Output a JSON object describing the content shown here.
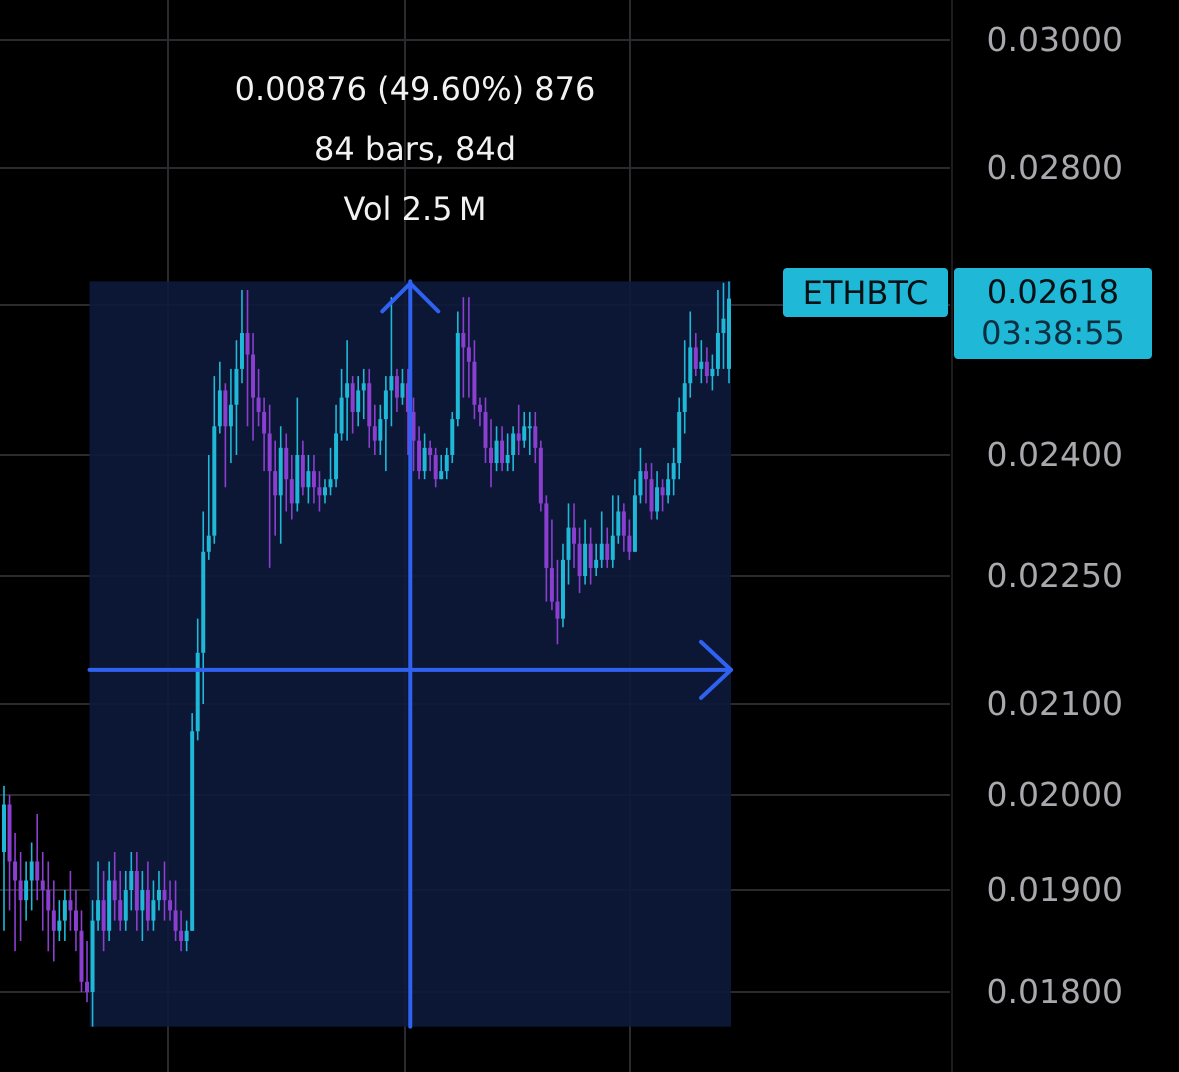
{
  "colors": {
    "background": "#000000",
    "grid": "#2b2b2f",
    "up": "#1fb8d7",
    "down": "#8a3fd1",
    "measure_fill": "#0c1a3a",
    "measure_arrow": "#2f62f0",
    "badge": "#1fb8d7",
    "axis_text": "#a8a8ad"
  },
  "measure_info": {
    "change": "0.00876 (49.60%) 876",
    "bars": "84 bars, 84d",
    "volume": "Vol 2.5 M"
  },
  "symbol_badge": "ETHBTC",
  "last_price": {
    "value": "0.02618",
    "countdown": "03:38:55"
  },
  "chart_data": {
    "type": "candlestick",
    "symbol": "ETHBTC",
    "y_scale": "log",
    "ylim": [
      0.0176,
      0.0305
    ],
    "y_ticks": [
      "0.03000",
      "0.02800",
      "0.02400",
      "0.02250",
      "0.02100",
      "0.02000",
      "0.01900",
      "0.01800"
    ],
    "y_tick_values": [
      0.03,
      0.028,
      0.024,
      0.0225,
      0.021,
      0.02,
      0.019,
      0.018
    ],
    "grid": true,
    "measure": {
      "from_index": 16,
      "to_index": 100,
      "from_price": 0.01766,
      "to_price": 0.02642
    },
    "candles": [
      [
        0.0194,
        0.0199,
        0.0201,
        0.0186
      ],
      [
        0.0199,
        0.0193,
        0.02,
        0.0188
      ],
      [
        0.0193,
        0.0191,
        0.0196,
        0.0184
      ],
      [
        0.0191,
        0.0189,
        0.0194,
        0.0185
      ],
      [
        0.0189,
        0.0191,
        0.0193,
        0.0187
      ],
      [
        0.0191,
        0.0193,
        0.0195,
        0.0188
      ],
      [
        0.0193,
        0.0191,
        0.0198,
        0.0189
      ],
      [
        0.0191,
        0.019,
        0.0194,
        0.0186
      ],
      [
        0.019,
        0.0188,
        0.0193,
        0.0184
      ],
      [
        0.0188,
        0.0186,
        0.0191,
        0.0183
      ],
      [
        0.0186,
        0.0187,
        0.0189,
        0.0185
      ],
      [
        0.0187,
        0.0189,
        0.019,
        0.0185
      ],
      [
        0.0189,
        0.0188,
        0.0192,
        0.0186
      ],
      [
        0.0188,
        0.0186,
        0.019,
        0.0184
      ],
      [
        0.0186,
        0.0181,
        0.0188,
        0.018
      ],
      [
        0.0181,
        0.018,
        0.0185,
        0.0179
      ],
      [
        0.018,
        0.0187,
        0.0189,
        0.01766
      ],
      [
        0.0187,
        0.0189,
        0.0193,
        0.0186
      ],
      [
        0.0189,
        0.0186,
        0.0192,
        0.0184
      ],
      [
        0.0186,
        0.0191,
        0.0193,
        0.0185
      ],
      [
        0.0191,
        0.0189,
        0.0194,
        0.0187
      ],
      [
        0.0189,
        0.0187,
        0.0192,
        0.0186
      ],
      [
        0.0187,
        0.019,
        0.0192,
        0.0186
      ],
      [
        0.019,
        0.0192,
        0.0194,
        0.0188
      ],
      [
        0.0192,
        0.0188,
        0.0194,
        0.0186
      ],
      [
        0.0188,
        0.019,
        0.0192,
        0.0185
      ],
      [
        0.019,
        0.0187,
        0.0193,
        0.0186
      ],
      [
        0.0187,
        0.0189,
        0.0191,
        0.0186
      ],
      [
        0.0189,
        0.019,
        0.0192,
        0.0188
      ],
      [
        0.019,
        0.0189,
        0.0193,
        0.0187
      ],
      [
        0.0189,
        0.0188,
        0.0191,
        0.0187
      ],
      [
        0.0188,
        0.0186,
        0.0191,
        0.0185
      ],
      [
        0.0186,
        0.0185,
        0.0188,
        0.0184
      ],
      [
        0.0185,
        0.0186,
        0.0187,
        0.0184
      ],
      [
        0.0186,
        0.0207,
        0.0209,
        0.0186
      ],
      [
        0.0207,
        0.0216,
        0.022,
        0.0206
      ],
      [
        0.0216,
        0.0228,
        0.0233,
        0.021
      ],
      [
        0.0228,
        0.023,
        0.024,
        0.0227
      ],
      [
        0.023,
        0.0244,
        0.0251,
        0.0229
      ],
      [
        0.0244,
        0.0249,
        0.0253,
        0.0243
      ],
      [
        0.0249,
        0.0244,
        0.025,
        0.0236
      ],
      [
        0.0244,
        0.0247,
        0.0252,
        0.0239
      ],
      [
        0.0247,
        0.0252,
        0.0256,
        0.024
      ],
      [
        0.0252,
        0.0257,
        0.0263,
        0.025
      ],
      [
        0.0257,
        0.0254,
        0.0263,
        0.0244
      ],
      [
        0.0254,
        0.0248,
        0.0257,
        0.0242
      ],
      [
        0.0248,
        0.0246,
        0.0252,
        0.0244
      ],
      [
        0.0246,
        0.0243,
        0.0248,
        0.0238
      ],
      [
        0.0243,
        0.0238,
        0.0247,
        0.0226
      ],
      [
        0.0238,
        0.0235,
        0.0242,
        0.023
      ],
      [
        0.0235,
        0.0241,
        0.0244,
        0.0229
      ],
      [
        0.0241,
        0.0237,
        0.0243,
        0.0233
      ],
      [
        0.0237,
        0.0234,
        0.024,
        0.0232
      ],
      [
        0.0234,
        0.024,
        0.0248,
        0.0233
      ],
      [
        0.024,
        0.0236,
        0.0242,
        0.0235
      ],
      [
        0.0236,
        0.0238,
        0.024,
        0.0234
      ],
      [
        0.0238,
        0.0236,
        0.024,
        0.0234
      ],
      [
        0.0236,
        0.0235,
        0.0238,
        0.0233
      ],
      [
        0.0235,
        0.0236,
        0.0237,
        0.0234
      ],
      [
        0.0236,
        0.0237,
        0.0241,
        0.0235
      ],
      [
        0.0237,
        0.0243,
        0.0247,
        0.0236
      ],
      [
        0.0243,
        0.0248,
        0.0252,
        0.0242
      ],
      [
        0.0248,
        0.025,
        0.0256,
        0.0242
      ],
      [
        0.025,
        0.0246,
        0.0251,
        0.0243
      ],
      [
        0.0246,
        0.0249,
        0.0251,
        0.0244
      ],
      [
        0.0249,
        0.025,
        0.0252,
        0.0245
      ],
      [
        0.025,
        0.0244,
        0.0252,
        0.0241
      ],
      [
        0.0244,
        0.0242,
        0.0247,
        0.024
      ],
      [
        0.0242,
        0.0245,
        0.0247,
        0.024
      ],
      [
        0.0245,
        0.0249,
        0.0251,
        0.0238
      ],
      [
        0.0249,
        0.0251,
        0.0262,
        0.0244
      ],
      [
        0.0251,
        0.0248,
        0.0252,
        0.0246
      ],
      [
        0.0248,
        0.025,
        0.0252,
        0.0247
      ],
      [
        0.025,
        0.0246,
        0.0252,
        0.024
      ],
      [
        0.0246,
        0.0242,
        0.0248,
        0.0238
      ],
      [
        0.0242,
        0.0238,
        0.0244,
        0.0237
      ],
      [
        0.0238,
        0.0241,
        0.0243,
        0.0237
      ],
      [
        0.0241,
        0.024,
        0.0242,
        0.0238
      ],
      [
        0.024,
        0.0237,
        0.0241,
        0.0236
      ],
      [
        0.0237,
        0.0238,
        0.024,
        0.0237
      ],
      [
        0.0238,
        0.024,
        0.0241,
        0.0237
      ],
      [
        0.024,
        0.0245,
        0.0246,
        0.0239
      ],
      [
        0.0245,
        0.0257,
        0.026,
        0.0244
      ],
      [
        0.0257,
        0.0255,
        0.0262,
        0.0248
      ],
      [
        0.0255,
        0.0253,
        0.0262,
        0.0248
      ],
      [
        0.0253,
        0.0247,
        0.0256,
        0.0245
      ],
      [
        0.0247,
        0.0246,
        0.0248,
        0.0244
      ],
      [
        0.0246,
        0.0241,
        0.0248,
        0.0239
      ],
      [
        0.0241,
        0.0239,
        0.0245,
        0.0236
      ],
      [
        0.0239,
        0.0242,
        0.0244,
        0.0238
      ],
      [
        0.0242,
        0.0239,
        0.0244,
        0.0238
      ],
      [
        0.0239,
        0.024,
        0.0243,
        0.0238
      ],
      [
        0.024,
        0.0243,
        0.0244,
        0.0238
      ],
      [
        0.0243,
        0.0242,
        0.0247,
        0.024
      ],
      [
        0.0242,
        0.0244,
        0.0246,
        0.0241
      ],
      [
        0.0244,
        0.0244,
        0.0246,
        0.024
      ],
      [
        0.0244,
        0.0241,
        0.0246,
        0.0239
      ],
      [
        0.0241,
        0.0234,
        0.0242,
        0.0233
      ],
      [
        0.0234,
        0.0226,
        0.0235,
        0.0222
      ],
      [
        0.0226,
        0.0222,
        0.0232,
        0.0221
      ],
      [
        0.0222,
        0.022,
        0.0227,
        0.0217
      ],
      [
        0.022,
        0.0227,
        0.0229,
        0.0219
      ],
      [
        0.0227,
        0.0231,
        0.0234,
        0.0224
      ],
      [
        0.0231,
        0.0229,
        0.0234,
        0.0226
      ],
      [
        0.0229,
        0.0225,
        0.0231,
        0.0223
      ],
      [
        0.0225,
        0.0229,
        0.0232,
        0.0224
      ],
      [
        0.0229,
        0.0226,
        0.0231,
        0.0224
      ],
      [
        0.0226,
        0.0227,
        0.0229,
        0.0225
      ],
      [
        0.0227,
        0.0229,
        0.0233,
        0.0226
      ],
      [
        0.0229,
        0.0227,
        0.0231,
        0.0226
      ],
      [
        0.0227,
        0.023,
        0.0235,
        0.0226
      ],
      [
        0.023,
        0.0233,
        0.0235,
        0.0229
      ],
      [
        0.0233,
        0.023,
        0.0234,
        0.0228
      ],
      [
        0.023,
        0.0228,
        0.0232,
        0.0227
      ],
      [
        0.0228,
        0.0235,
        0.0237,
        0.0228
      ],
      [
        0.0235,
        0.0238,
        0.0241,
        0.0234
      ],
      [
        0.0238,
        0.0237,
        0.0239,
        0.0234
      ],
      [
        0.0237,
        0.0233,
        0.0239,
        0.0232
      ],
      [
        0.0233,
        0.0236,
        0.0238,
        0.0232
      ],
      [
        0.0236,
        0.0235,
        0.0237,
        0.0233
      ],
      [
        0.0235,
        0.0237,
        0.0239,
        0.0234
      ],
      [
        0.0237,
        0.0239,
        0.0241,
        0.0235
      ],
      [
        0.0239,
        0.0246,
        0.0248,
        0.0237
      ],
      [
        0.0246,
        0.025,
        0.0256,
        0.0243
      ],
      [
        0.025,
        0.0255,
        0.026,
        0.0248
      ],
      [
        0.0255,
        0.0252,
        0.0257,
        0.0251
      ],
      [
        0.0252,
        0.0253,
        0.0256,
        0.025
      ],
      [
        0.0253,
        0.0251,
        0.0255,
        0.025
      ],
      [
        0.0251,
        0.0252,
        0.0254,
        0.0249
      ],
      [
        0.0252,
        0.0257,
        0.0263,
        0.0251
      ],
      [
        0.0257,
        0.0259,
        0.0264,
        0.0252
      ],
      [
        0.0252,
        0.02618,
        0.02642,
        0.025
      ]
    ]
  }
}
